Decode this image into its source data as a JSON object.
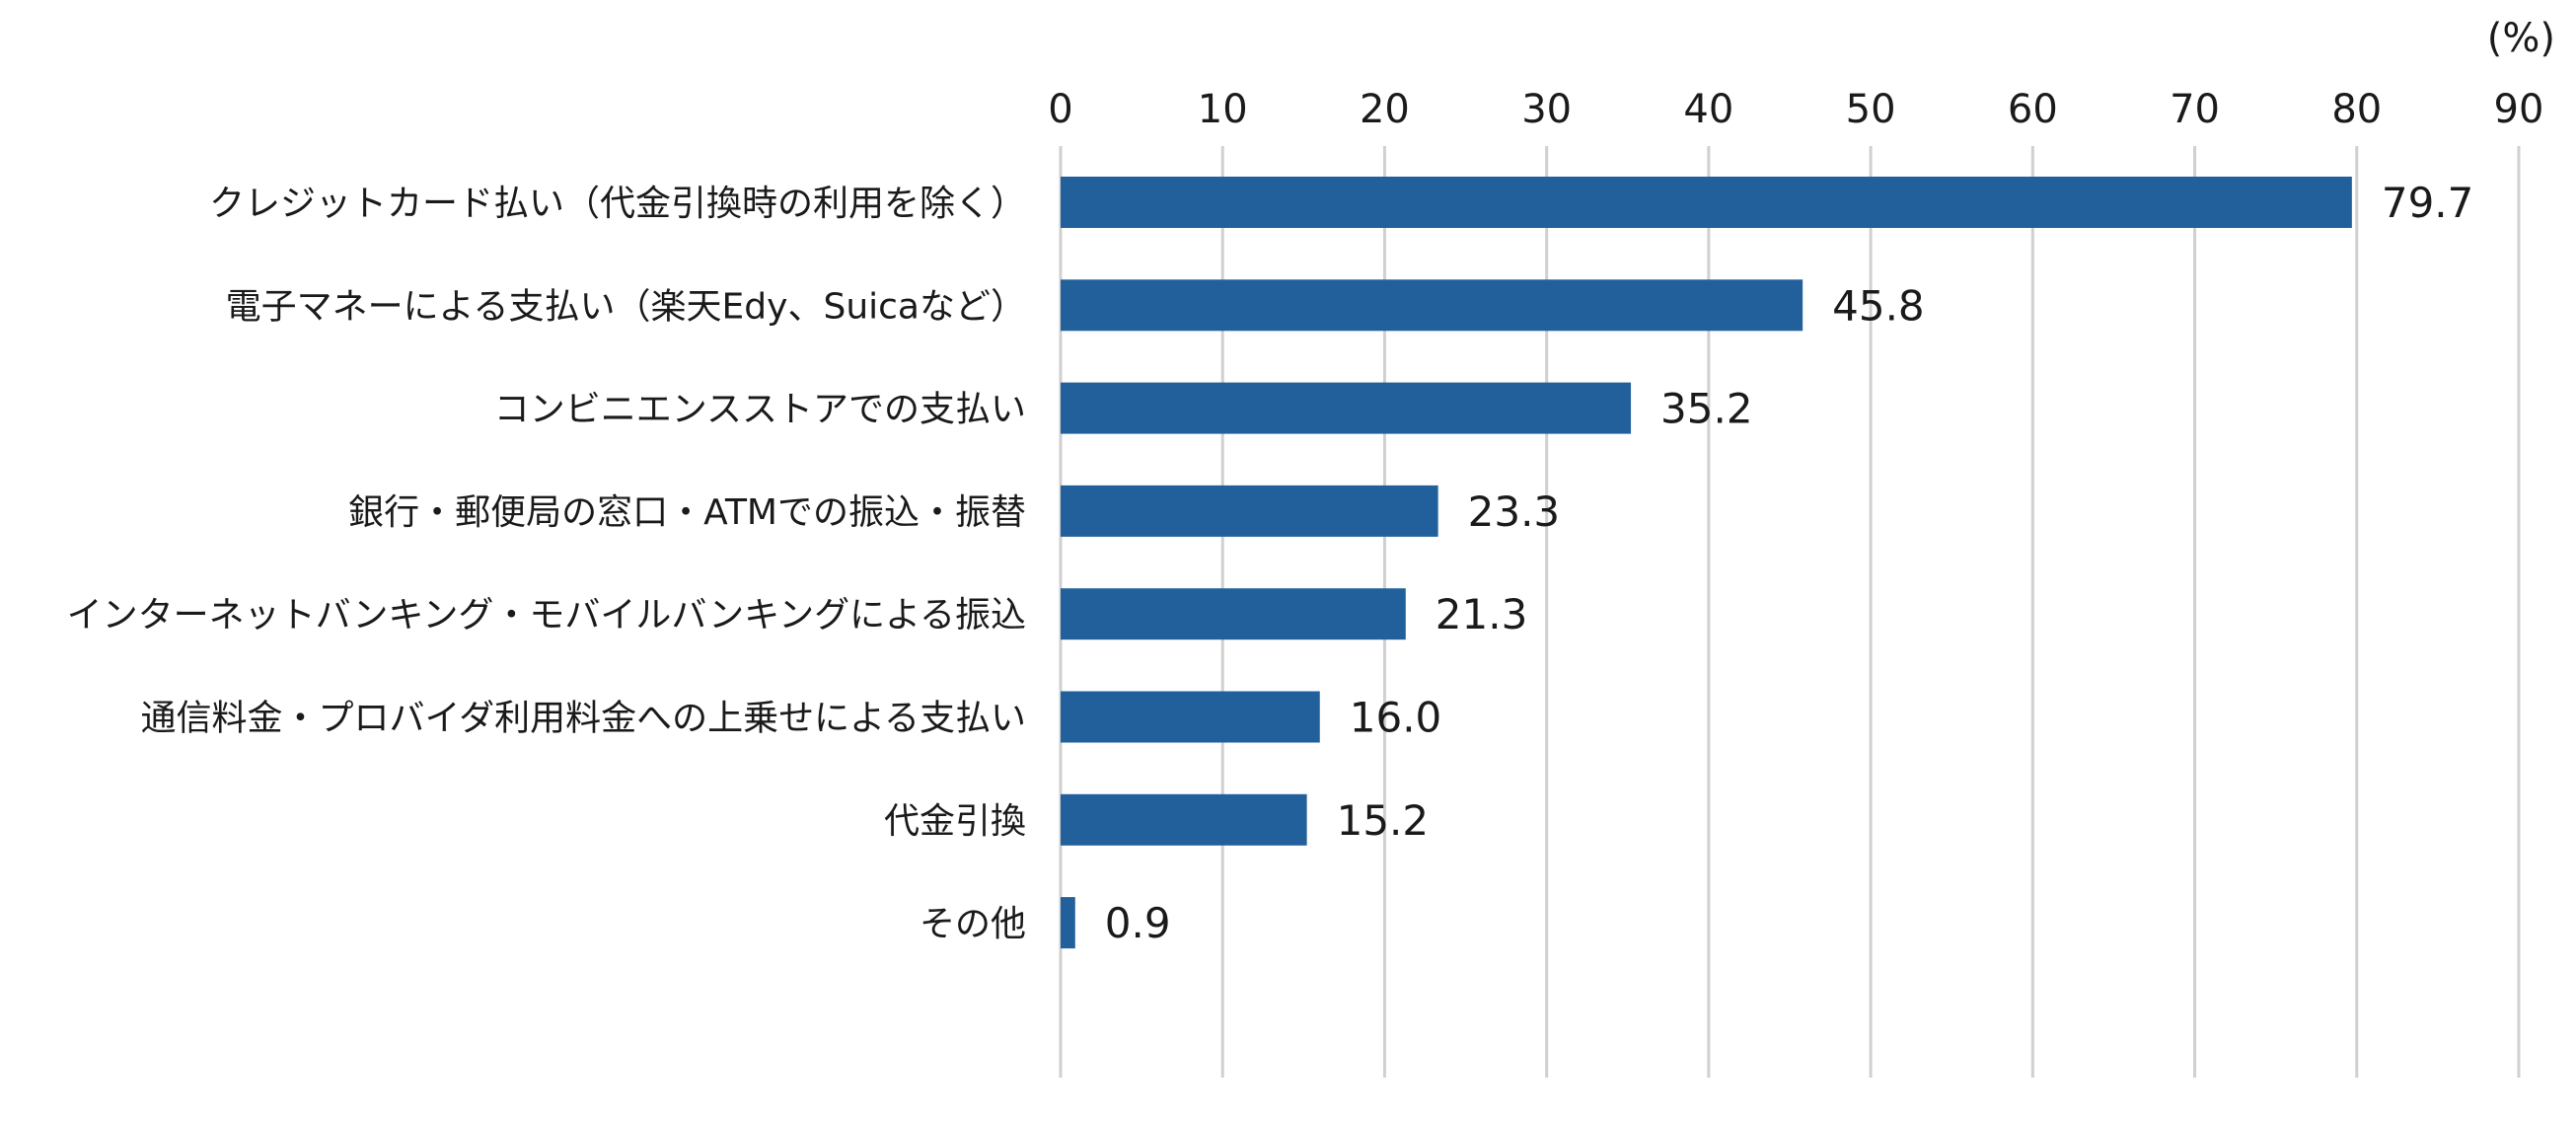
{
  "chart_data": {
    "type": "bar",
    "orientation": "horizontal",
    "unit": "(%)",
    "xlim": [
      0,
      90
    ],
    "ticks": [
      0,
      10,
      20,
      30,
      40,
      50,
      60,
      70,
      80,
      90
    ],
    "tick_labels": [
      "0",
      "10",
      "20",
      "30",
      "40",
      "50",
      "60",
      "70",
      "80",
      "90"
    ],
    "grid": true,
    "axis_position": "top",
    "bar_color": "#21609b",
    "categories": [
      "クレジットカード払い（代金引換時の利用を除く）",
      "電子マネーによる支払い（楽天Edy、Suicaなど）",
      "コンビニエンスストアでの支払い",
      "銀行・郵便局の窓口・ATMでの振込・振替",
      "インターネットバンキング・モバイルバンキングによる振込",
      "通信料金・プロバイダ利用料金への上乗せによる支払い",
      "代金引換",
      "その他"
    ],
    "values": [
      79.7,
      45.8,
      35.2,
      23.3,
      21.3,
      16.0,
      15.2,
      0.9
    ],
    "value_labels": [
      "79.7",
      "45.8",
      "35.2",
      "23.3",
      "21.3",
      "16.0",
      "15.2",
      "0.9"
    ]
  }
}
